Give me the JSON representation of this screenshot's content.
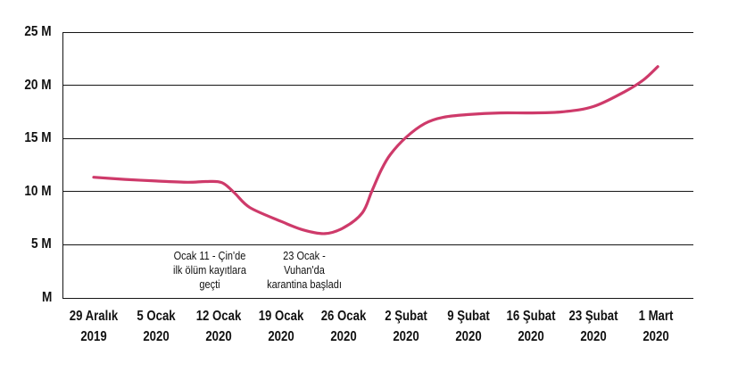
{
  "chart_data": {
    "type": "line",
    "title": "",
    "xlabel": "",
    "ylabel": "",
    "unit": "M",
    "ylim": [
      0,
      25
    ],
    "grid": "horizontal",
    "legend": "none",
    "background": "#ffffff",
    "line_color": "#ce3a6a",
    "axis_color": "#151515",
    "y_ticks": [
      {
        "value": 0,
        "label": "M"
      },
      {
        "value": 5,
        "label": "5 M"
      },
      {
        "value": 10,
        "label": "10 M"
      },
      {
        "value": 15,
        "label": "15 M"
      },
      {
        "value": 20,
        "label": "20 M"
      },
      {
        "value": 25,
        "label": "25 M"
      }
    ],
    "categories": [
      {
        "line1": "29 Aralık",
        "line2": "2019"
      },
      {
        "line1": "5 Ocak",
        "line2": "2020"
      },
      {
        "line1": "12 Ocak",
        "line2": "2020"
      },
      {
        "line1": "19 Ocak",
        "line2": "2020"
      },
      {
        "line1": "26 Ocak",
        "line2": "2020"
      },
      {
        "line1": "2 Şubat",
        "line2": "2020"
      },
      {
        "line1": "9 Şubat",
        "line2": "2020"
      },
      {
        "line1": "16 Şubat",
        "line2": "2020"
      },
      {
        "line1": "23 Şubat",
        "line2": "2020"
      },
      {
        "line1": "1 Mart",
        "line2": "2020"
      }
    ],
    "values_millions": [
      11.3,
      11.0,
      10.9,
      7.2,
      6.6,
      15.1,
      17.3,
      17.4,
      18.0,
      21.7
    ],
    "curve_points": [
      [
        0,
        11.35
      ],
      [
        0.5,
        11.15
      ],
      [
        1,
        11.0
      ],
      [
        1.5,
        10.88
      ],
      [
        1.8,
        10.95
      ],
      [
        2.05,
        10.85
      ],
      [
        2.25,
        9.9
      ],
      [
        2.5,
        8.5
      ],
      [
        3,
        7.2
      ],
      [
        3.35,
        6.4
      ],
      [
        3.7,
        6.05
      ],
      [
        4,
        6.6
      ],
      [
        4.3,
        8.0
      ],
      [
        4.45,
        10.0
      ],
      [
        4.6,
        12.0
      ],
      [
        4.75,
        13.5
      ],
      [
        5,
        15.1
      ],
      [
        5.3,
        16.4
      ],
      [
        5.6,
        17.0
      ],
      [
        6,
        17.25
      ],
      [
        6.5,
        17.4
      ],
      [
        7,
        17.4
      ],
      [
        7.5,
        17.5
      ],
      [
        8,
        18.0
      ],
      [
        8.5,
        19.4
      ],
      [
        8.8,
        20.5
      ],
      [
        9.03,
        21.75
      ]
    ],
    "annotations": [
      {
        "x_index": 1.86,
        "lines": [
          "Ocak 11 - Çin'de",
          "ilk ölüm kayıtlara",
          "geçti"
        ]
      },
      {
        "x_index": 3.37,
        "lines": [
          "23 Ocak -",
          "Vuhan'da",
          "karantina başladı"
        ]
      }
    ]
  }
}
